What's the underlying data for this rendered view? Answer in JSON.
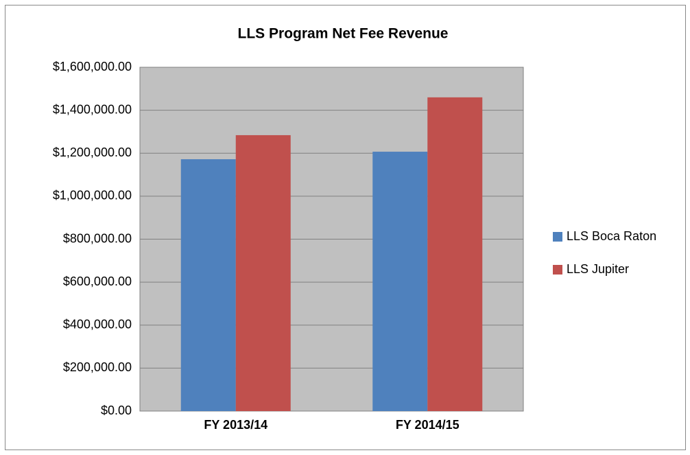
{
  "chart_data": {
    "type": "bar",
    "title": "LLS Program Net Fee Revenue",
    "categories": [
      "FY 2013/14",
      "FY 2014/15"
    ],
    "series": [
      {
        "name": "LLS Boca Raton",
        "color": "#4f81bd",
        "values": [
          1172000,
          1207000
        ]
      },
      {
        "name": "LLS Jupiter",
        "color": "#c0504d",
        "values": [
          1284000,
          1460000
        ]
      }
    ],
    "ylim": [
      0,
      1600000
    ],
    "yticks": [
      {
        "value": 0,
        "label": "$0.00"
      },
      {
        "value": 200000,
        "label": "$200,000.00"
      },
      {
        "value": 400000,
        "label": "$400,000.00"
      },
      {
        "value": 600000,
        "label": "$600,000.00"
      },
      {
        "value": 800000,
        "label": "$800,000.00"
      },
      {
        "value": 1000000,
        "label": "$1,000,000.00"
      },
      {
        "value": 1200000,
        "label": "$1,200,000.00"
      },
      {
        "value": 1400000,
        "label": "$1,400,000.00"
      },
      {
        "value": 1600000,
        "label": "$1,600,000.00"
      }
    ],
    "grid": true,
    "legend": "right"
  }
}
